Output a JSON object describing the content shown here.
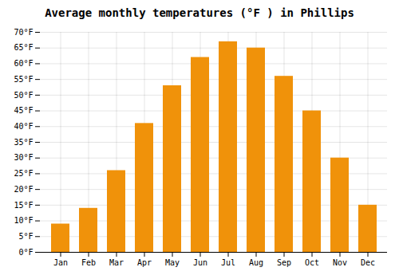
{
  "chart_data": {
    "type": "bar",
    "title": "Average monthly temperatures (°F ) in Phillips",
    "categories": [
      "Jan",
      "Feb",
      "Mar",
      "Apr",
      "May",
      "Jun",
      "Jul",
      "Aug",
      "Sep",
      "Oct",
      "Nov",
      "Dec"
    ],
    "values": [
      9,
      14,
      26,
      41,
      53,
      62,
      67,
      65,
      56,
      45,
      30,
      15
    ],
    "color": "#F0920A",
    "ylim": [
      0,
      70
    ],
    "yticks": [
      {
        "value": 0,
        "label": "0°F"
      },
      {
        "value": 5,
        "label": "5°F"
      },
      {
        "value": 10,
        "label": "10°F"
      },
      {
        "value": 15,
        "label": "15°F"
      },
      {
        "value": 20,
        "label": "20°F"
      },
      {
        "value": 25,
        "label": "25°F"
      },
      {
        "value": 30,
        "label": "30°F"
      },
      {
        "value": 35,
        "label": "35°F"
      },
      {
        "value": 40,
        "label": "40°F"
      },
      {
        "value": 45,
        "label": "45°F"
      },
      {
        "value": 50,
        "label": "50°F"
      },
      {
        "value": 55,
        "label": "55°F"
      },
      {
        "value": 60,
        "label": "60°F"
      },
      {
        "value": 65,
        "label": "65°F"
      },
      {
        "value": 70,
        "label": "70°F"
      }
    ],
    "grid": true
  }
}
